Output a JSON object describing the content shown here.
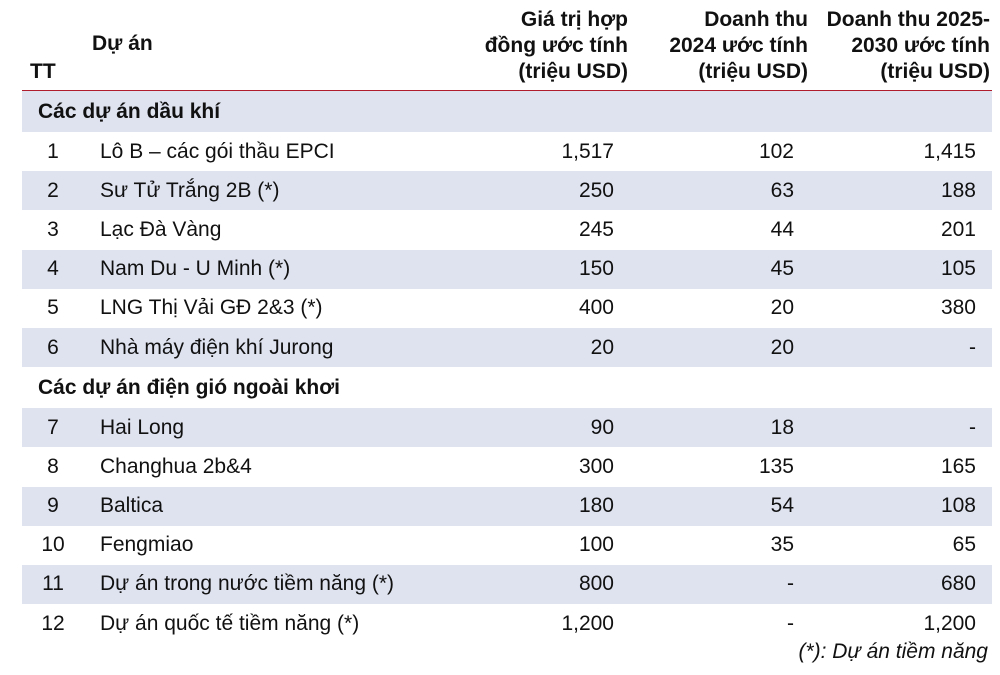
{
  "headers": {
    "tt": "TT",
    "project": "Dự án",
    "value_lines": [
      "Giá trị hợp",
      "đồng ước tính",
      "(triệu USD)"
    ],
    "rev2024_lines": [
      "Doanh thu",
      "2024 ước tính",
      "(triệu USD)"
    ],
    "rev2030_lines": [
      "Doanh thu 2025-",
      "2030 ước tính",
      "(triệu USD)"
    ]
  },
  "sections": [
    {
      "title": "Các dự án dầu khí",
      "rows": [
        {
          "tt": "1",
          "name": "Lô B – các gói thầu EPCI",
          "value": "1,517",
          "rev2024": "102",
          "rev2030": "1,415"
        },
        {
          "tt": "2",
          "name": "Sư Tử Trắng 2B (*)",
          "value": "250",
          "rev2024": "63",
          "rev2030": "188"
        },
        {
          "tt": "3",
          "name": "Lạc Đà Vàng",
          "value": "245",
          "rev2024": "44",
          "rev2030": "201"
        },
        {
          "tt": "4",
          "name": "Nam Du - U Minh (*)",
          "value": "150",
          "rev2024": "45",
          "rev2030": "105"
        },
        {
          "tt": "5",
          "name": "LNG Thị Vải GĐ 2&3 (*)",
          "value": "400",
          "rev2024": "20",
          "rev2030": "380"
        },
        {
          "tt": "6",
          "name": "Nhà máy điện khí Jurong",
          "value": "20",
          "rev2024": "20",
          "rev2030": "-"
        }
      ]
    },
    {
      "title": "Các dự án điện gió ngoài khơi",
      "rows": [
        {
          "tt": "7",
          "name": "Hai Long",
          "value": "90",
          "rev2024": "18",
          "rev2030": "-"
        },
        {
          "tt": "8",
          "name": "Changhua 2b&4",
          "value": "300",
          "rev2024": "135",
          "rev2030": "165"
        },
        {
          "tt": "9",
          "name": "Baltica",
          "value": "180",
          "rev2024": "54",
          "rev2030": "108"
        },
        {
          "tt": "10",
          "name": "Fengmiao",
          "value": "100",
          "rev2024": "35",
          "rev2030": "65"
        },
        {
          "tt": "11",
          "name": "Dự án trong nước tiềm năng (*)",
          "value": "800",
          "rev2024": "-",
          "rev2030": "680"
        },
        {
          "tt": "12",
          "name": "Dự án quốc tế tiềm năng (*)",
          "value": "1,200",
          "rev2024": "-",
          "rev2030": "1,200"
        }
      ]
    }
  ],
  "note": "(*): Dự án tiềm năng",
  "colors": {
    "shade": "#dfe3f0",
    "header_rule": "#b01e2d"
  }
}
